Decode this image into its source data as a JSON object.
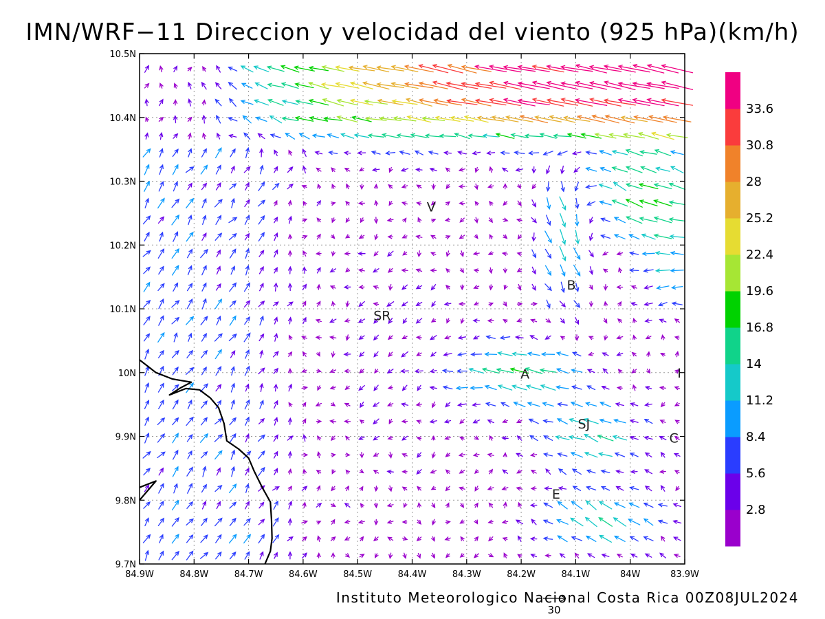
{
  "title": "IMN/WRF−11 Direccion y velocidad del viento (925 hPa)(km/h)",
  "footer": "Instituto Meteorologico Nacional Costa Rica 00Z08JUL2024",
  "reference_vector": {
    "label": "30",
    "speed": 30
  },
  "map": {
    "lon_range": [
      -84.9,
      -83.9
    ],
    "lat_range": [
      9.7,
      10.5
    ],
    "grid": true,
    "x_ticks": [
      {
        "value": -84.9,
        "label": "84.9W"
      },
      {
        "value": -84.8,
        "label": "84.8W"
      },
      {
        "value": -84.7,
        "label": "84.7W"
      },
      {
        "value": -84.6,
        "label": "84.6W"
      },
      {
        "value": -84.5,
        "label": "84.5W"
      },
      {
        "value": -84.4,
        "label": "84.4W"
      },
      {
        "value": -84.3,
        "label": "84.3W"
      },
      {
        "value": -84.2,
        "label": "84.2W"
      },
      {
        "value": -84.1,
        "label": "84.1W"
      },
      {
        "value": -84.0,
        "label": "84W"
      },
      {
        "value": -83.9,
        "label": "83.9W"
      }
    ],
    "y_ticks": [
      {
        "value": 9.7,
        "label": "9.7N"
      },
      {
        "value": 9.8,
        "label": "9.8N"
      },
      {
        "value": 9.9,
        "label": "9.9N"
      },
      {
        "value": 10.0,
        "label": "10N"
      },
      {
        "value": 10.1,
        "label": "10.1N"
      },
      {
        "value": 10.2,
        "label": "10.2N"
      },
      {
        "value": 10.3,
        "label": "10.3N"
      },
      {
        "value": 10.4,
        "label": "10.4N"
      },
      {
        "value": 10.5,
        "label": "10.5N"
      }
    ],
    "cities": [
      {
        "label": "V",
        "lon": -84.365,
        "lat": 10.26
      },
      {
        "label": "B",
        "lon": -84.108,
        "lat": 10.138
      },
      {
        "label": "SR",
        "lon": -84.455,
        "lat": 10.09
      },
      {
        "label": "A",
        "lon": -84.193,
        "lat": 9.998
      },
      {
        "label": "I",
        "lon": -83.91,
        "lat": 10.0
      },
      {
        "label": "SJ",
        "lon": -84.085,
        "lat": 9.92
      },
      {
        "label": "C",
        "lon": -83.92,
        "lat": 9.898
      },
      {
        "label": "E",
        "lon": -84.136,
        "lat": 9.81
      }
    ],
    "coastline": [
      [
        -84.9,
        10.02
      ],
      [
        -84.87,
        10.0
      ],
      [
        -84.84,
        9.99
      ],
      [
        -84.805,
        9.985
      ],
      [
        -84.825,
        9.976
      ],
      [
        -84.845,
        9.965
      ],
      [
        -84.815,
        9.975
      ],
      [
        -84.79,
        9.973
      ],
      [
        -84.77,
        9.96
      ],
      [
        -84.755,
        9.945
      ],
      [
        -84.745,
        9.92
      ],
      [
        -84.74,
        9.893
      ],
      [
        -84.718,
        9.88
      ],
      [
        -84.7,
        9.866
      ],
      [
        -84.69,
        9.846
      ],
      [
        -84.675,
        9.82
      ],
      [
        -84.66,
        9.797
      ],
      [
        -84.658,
        9.77
      ],
      [
        -84.657,
        9.74
      ],
      [
        -84.66,
        9.72
      ],
      [
        -84.67,
        9.7
      ]
    ],
    "coastline_south": [
      [
        -84.9,
        9.82
      ],
      [
        -84.87,
        9.83
      ],
      [
        -84.9,
        9.8
      ]
    ]
  },
  "legend": {
    "ticks": [
      "33.6",
      "30.8",
      "28",
      "25.2",
      "22.4",
      "19.6",
      "16.8",
      "14",
      "11.2",
      "8.4",
      "5.6",
      "2.8"
    ],
    "colors": [
      "#9a00cc",
      "#6b00ea",
      "#2a3dff",
      "#0a9cff",
      "#15c9c9",
      "#10d38a",
      "#00d200",
      "#a6e634",
      "#e6dc32",
      "#e6af2e",
      "#f0822a",
      "#fa3c3c",
      "#f00082"
    ],
    "breaks": [
      2.8,
      5.6,
      8.4,
      11.2,
      14,
      16.8,
      19.6,
      22.4,
      25.2,
      28,
      30.8,
      33.6
    ]
  },
  "wind_field": {
    "grid_spacing_deg": 0.0263,
    "description_regimes": [
      {
        "region": "north",
        "lon": [
          -84.75,
          -83.9
        ],
        "lat": [
          10.36,
          10.5
        ],
        "dir_toward_deg": 190,
        "speed": [
          20,
          36
        ]
      },
      {
        "region": "northeast",
        "lon": [
          -84.15,
          -83.9
        ],
        "lat": [
          10.15,
          10.36
        ],
        "dir_toward_deg": 150,
        "speed": [
          14,
          30
        ]
      },
      {
        "region": "central-east",
        "lon": [
          -84.35,
          -84.05
        ],
        "lat": [
          9.95,
          10.05
        ],
        "dir_toward_deg": 160,
        "speed": [
          10,
          20
        ]
      },
      {
        "region": "southeast",
        "lon": [
          -84.2,
          -83.95
        ],
        "lat": [
          9.72,
          9.82
        ],
        "dir_toward_deg": 165,
        "speed": [
          10,
          20
        ]
      },
      {
        "region": "west",
        "lon": [
          -84.9,
          -84.6
        ],
        "lat": [
          9.7,
          10.4
        ],
        "dir_toward_deg": 80,
        "speed": [
          4,
          12
        ]
      },
      {
        "region": "central",
        "lon": [
          -84.6,
          -84.3
        ],
        "lat": [
          9.7,
          10.3
        ],
        "dir_toward_deg": 270,
        "speed": [
          1,
          8
        ]
      }
    ]
  }
}
